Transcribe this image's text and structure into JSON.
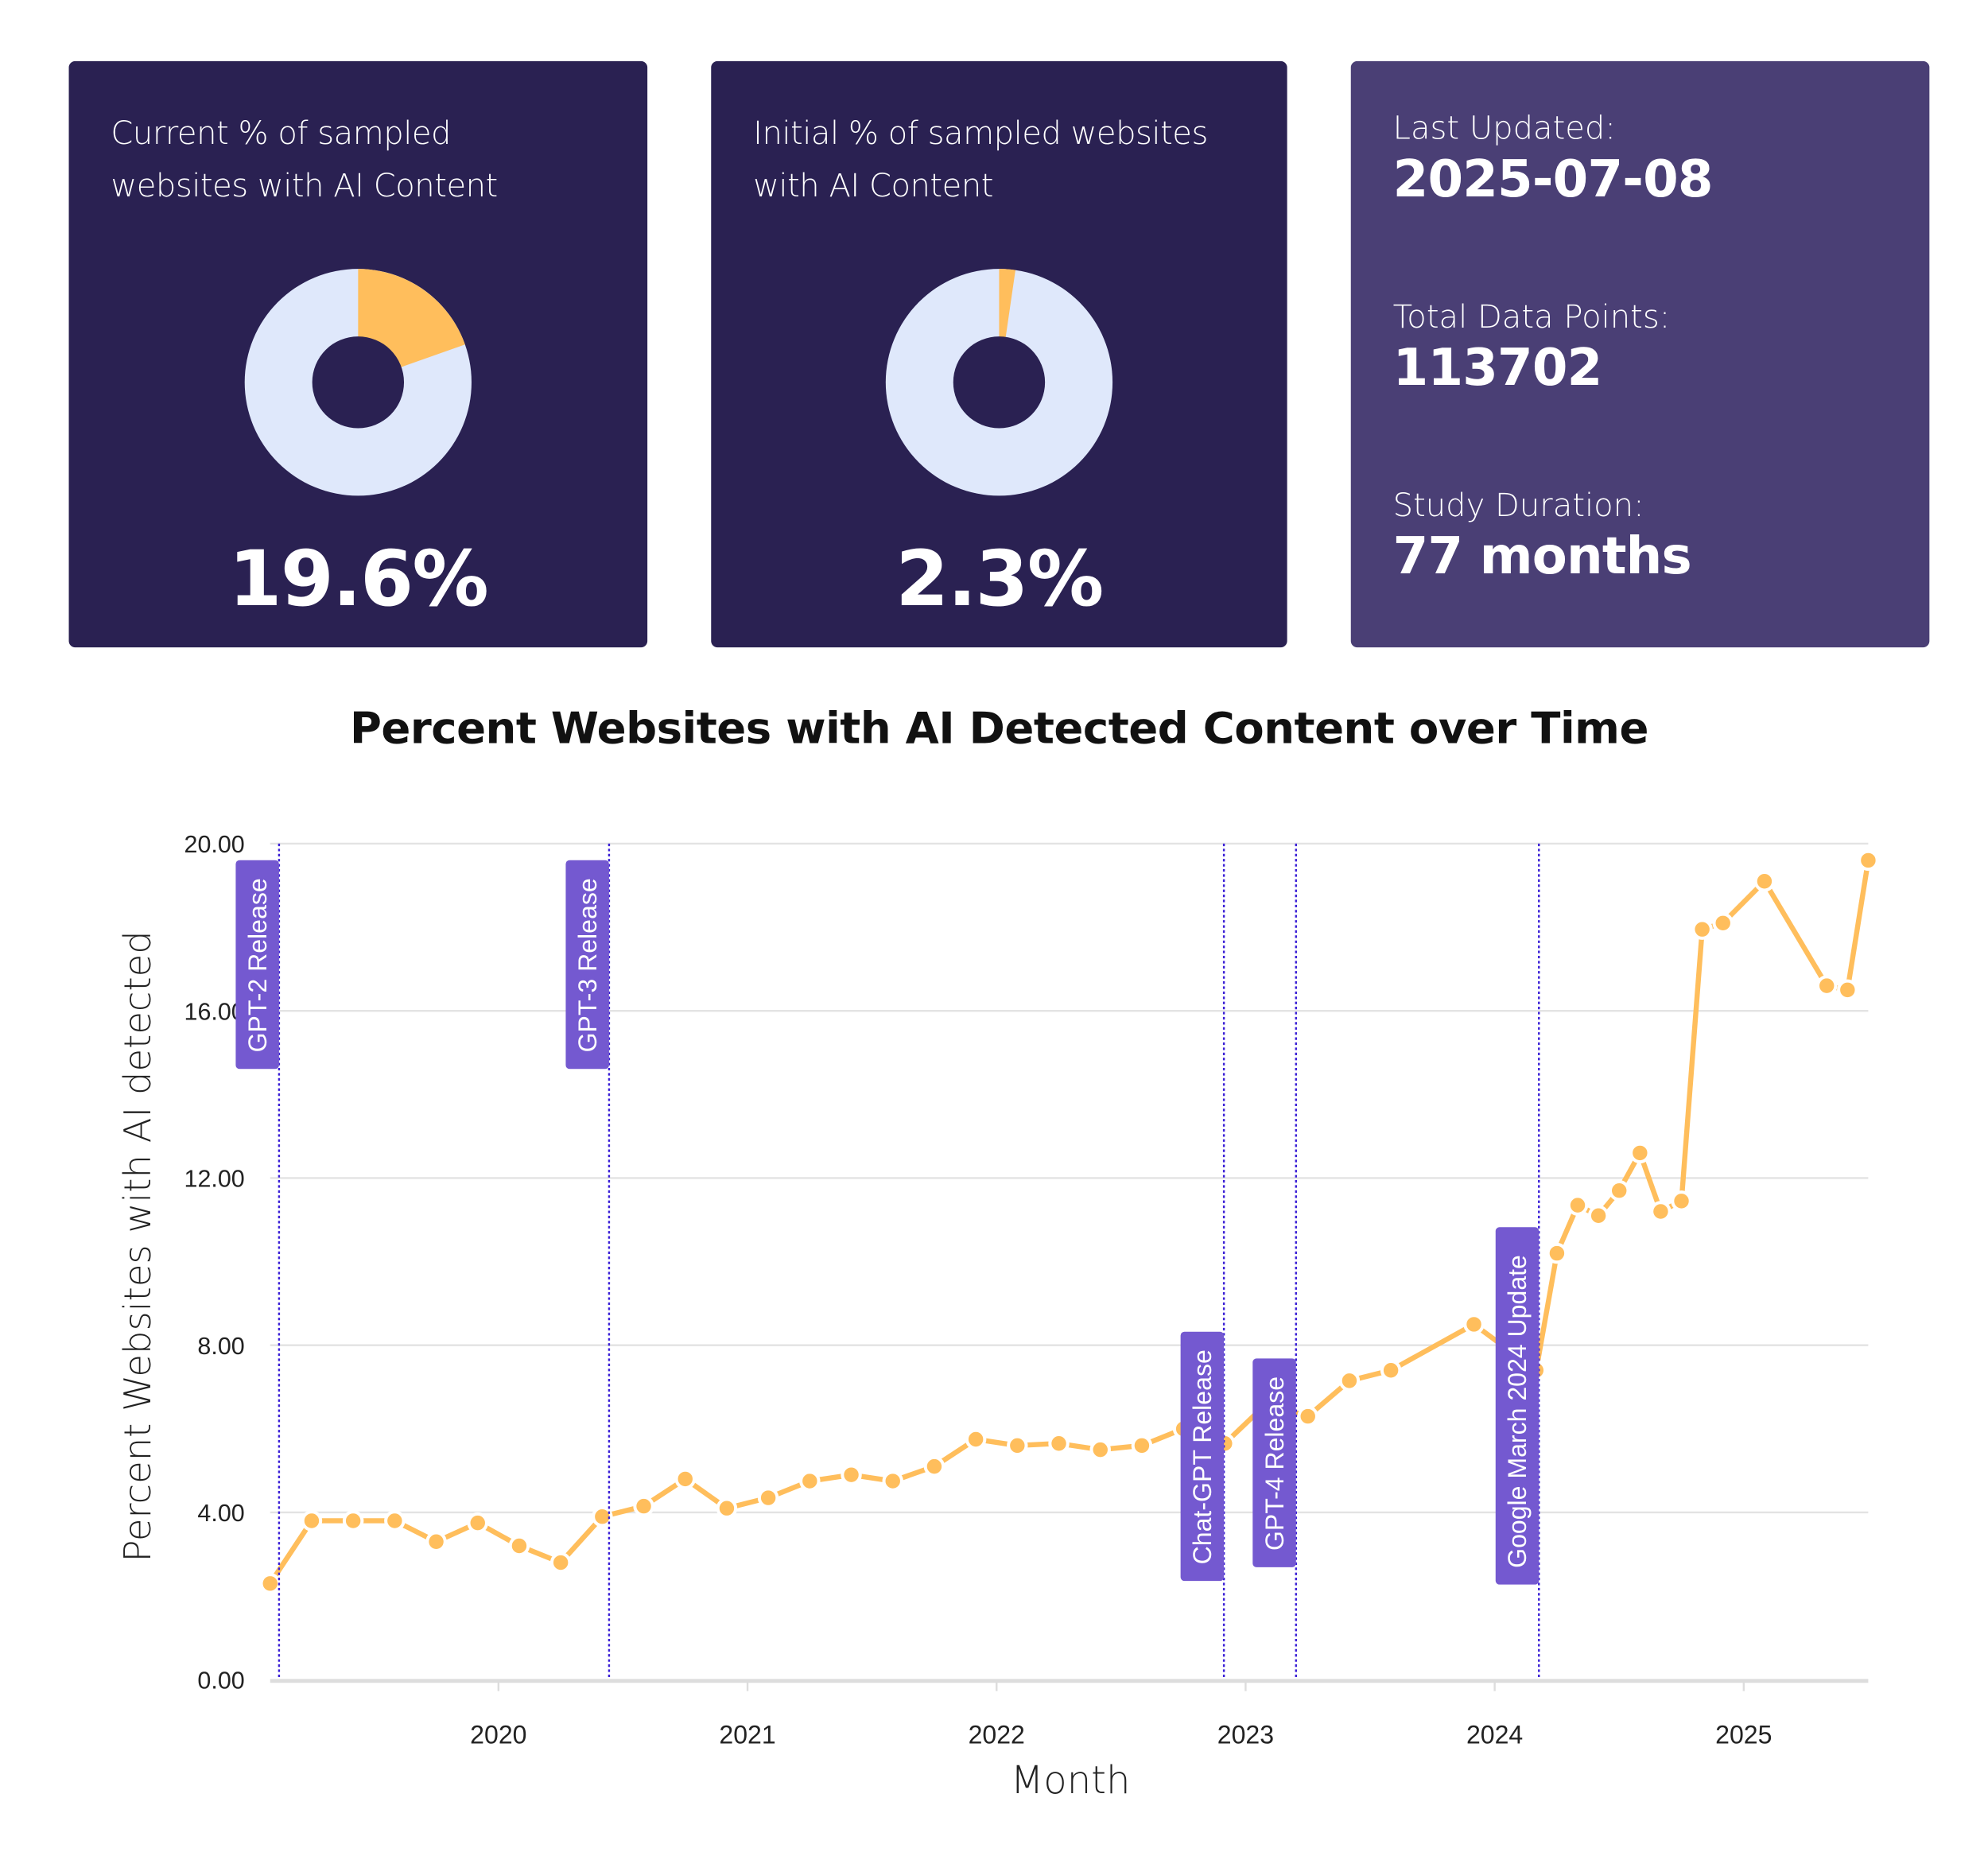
{
  "cards": {
    "current": {
      "title_line1": "Current % of sampled",
      "title_line2": "websites with AI Content",
      "value": "19.6%",
      "fraction": 0.196
    },
    "initial": {
      "title_line1": "Initial % of sampled websites",
      "title_line2": "with AI Content",
      "value": "2.3%",
      "fraction": 0.023
    },
    "stats": {
      "last_updated_label": "Last Updated:",
      "last_updated_value": "2025-07-08",
      "total_label": "Total Data Points:",
      "total_value": "113702",
      "duration_label": "Study Duration:",
      "duration_value": "77 months"
    }
  },
  "colors": {
    "card_dark": "#2a2152",
    "card_light": "#4a3f75",
    "accent_orange": "#ffbe5c",
    "donut_rest": "#dfe8fb",
    "annotation": "#7459d0",
    "marker_line": "#3a1fd6"
  },
  "chart_data": {
    "type": "line",
    "title": "Percent Websites with AI Detected Content over Time",
    "xlabel": "Month",
    "ylabel": "Percent Websites with AI detected",
    "ylim": [
      0,
      20
    ],
    "yticks": [
      "0.00",
      "4.00",
      "8.00",
      "12.00",
      "16.00",
      "20.00"
    ],
    "ytick_values": [
      0,
      4,
      8,
      12,
      16,
      20
    ],
    "xticks": [
      "2020",
      "2021",
      "2022",
      "2023",
      "2024",
      "2025"
    ],
    "xlim": [
      "2019-02",
      "2025-07"
    ],
    "grid": true,
    "x": [
      "2019-02",
      "2019-04",
      "2019-06",
      "2019-08",
      "2019-10",
      "2019-12",
      "2020-02",
      "2020-04",
      "2020-06",
      "2020-08",
      "2020-10",
      "2020-12",
      "2021-02",
      "2021-04",
      "2021-06",
      "2021-08",
      "2021-10",
      "2021-12",
      "2022-02",
      "2022-04",
      "2022-06",
      "2022-08",
      "2022-10",
      "2022-12",
      "2023-02",
      "2023-04",
      "2023-06",
      "2023-08",
      "2023-12",
      "2024-03",
      "2024-04",
      "2024-05",
      "2024-06",
      "2024-07",
      "2024-08",
      "2024-09",
      "2024-10",
      "2024-11",
      "2024-12",
      "2025-02",
      "2025-05",
      "2025-06",
      "2025-07"
    ],
    "values": [
      2.3,
      3.8,
      3.8,
      3.8,
      3.3,
      3.75,
      3.2,
      2.8,
      3.9,
      4.15,
      4.8,
      4.1,
      4.35,
      4.75,
      4.9,
      4.75,
      5.1,
      5.75,
      5.6,
      5.65,
      5.5,
      5.6,
      6.0,
      5.65,
      6.6,
      6.3,
      7.15,
      7.4,
      8.5,
      7.4,
      10.2,
      11.35,
      11.1,
      11.7,
      12.6,
      11.2,
      11.45,
      17.95,
      18.1,
      19.1,
      16.6,
      16.5,
      19.6
    ],
    "annotations": [
      {
        "label": "GPT-2 Release",
        "date": "2019-02-14"
      },
      {
        "label": "GPT-3 Release",
        "date": "2020-06-11"
      },
      {
        "label": "Chat-GPT Release",
        "date": "2022-11-30"
      },
      {
        "label": "GPT-4 Release",
        "date": "2023-03-14"
      },
      {
        "label": "Google March 2024 Update",
        "date": "2024-03-05"
      }
    ]
  }
}
